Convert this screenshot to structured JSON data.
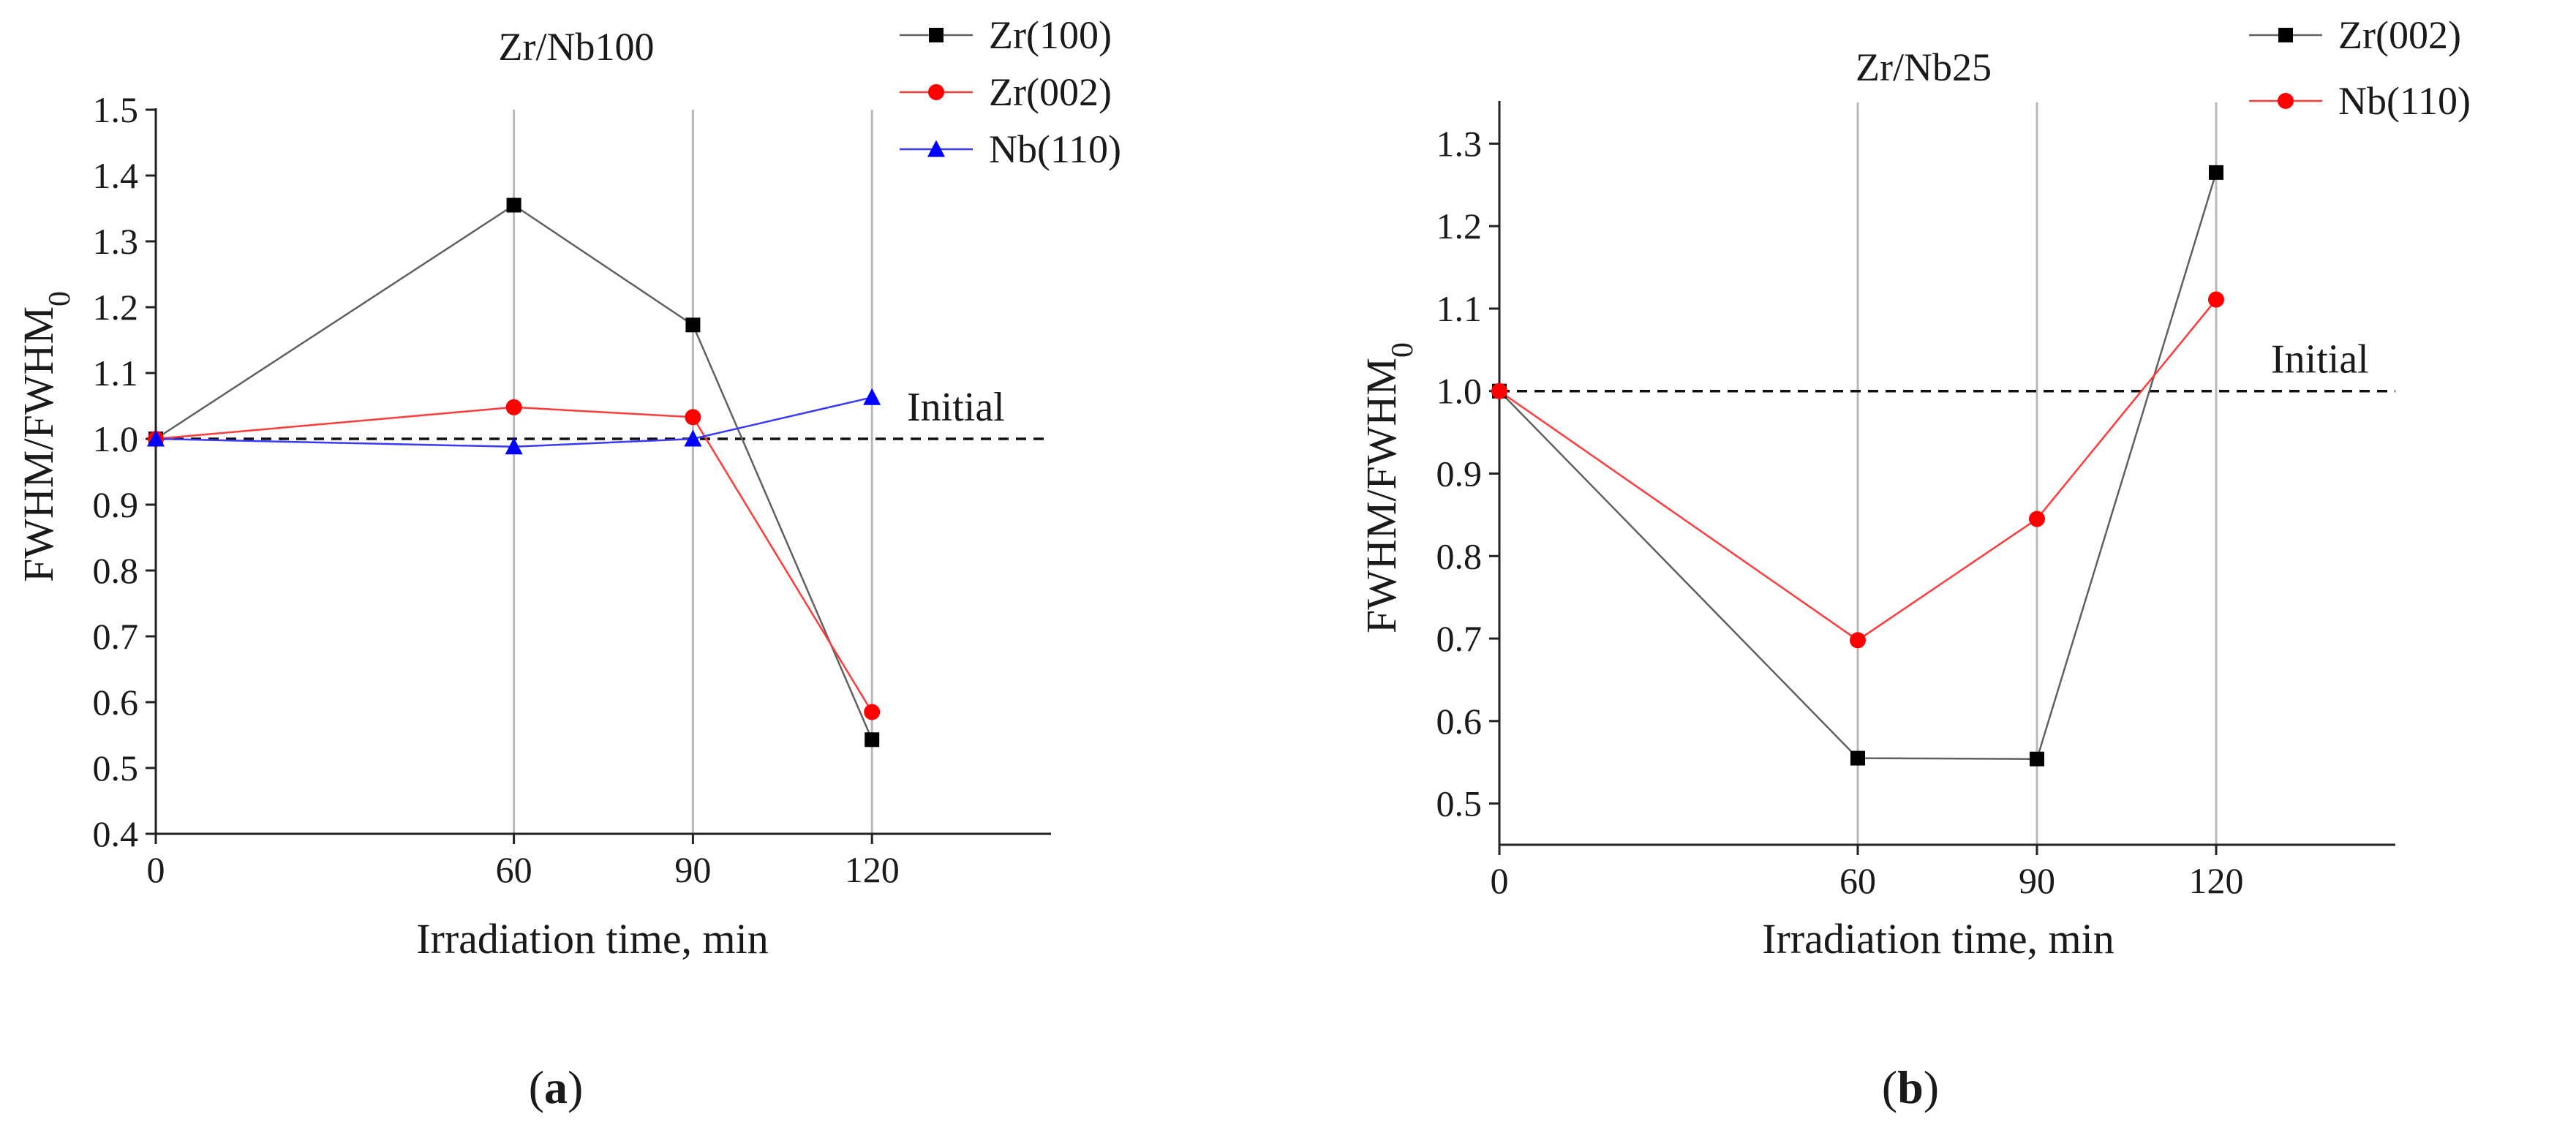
{
  "chart_data": [
    {
      "type": "line",
      "panel_label": "a",
      "title": "Zr/Nb100",
      "xlabel": "Irradiation time, min",
      "ylabel": "FWHM/FWHM",
      "ylabel_subscript": "0",
      "x": [
        0,
        60,
        90,
        120
      ],
      "xlim": [
        0,
        150
      ],
      "ylim": [
        0.4,
        1.5
      ],
      "xticks": [
        0,
        60,
        90,
        120
      ],
      "yticks": [
        0.4,
        0.5,
        0.6,
        0.7,
        0.8,
        0.9,
        1.0,
        1.1,
        1.2,
        1.3,
        1.4,
        1.5
      ],
      "ytick_labels": [
        "0.4",
        "0.5",
        "0.6",
        "0.7",
        "0.8",
        "0.9",
        "1.0",
        "1.1",
        "1.2",
        "1.3",
        "1.4",
        "1.5"
      ],
      "vgrid": [
        60,
        90,
        120
      ],
      "reference_line": {
        "y": 1.0,
        "label": "Initial",
        "style": "dashed"
      },
      "legend_position": "top-right",
      "series": [
        {
          "name": "Zr(100)",
          "color": "#000000",
          "line_color": "#606060",
          "marker": "square",
          "values": [
            1.0,
            1.355,
            1.173,
            0.543
          ]
        },
        {
          "name": "Zr(002)",
          "color": "#ff0000",
          "line_color": "#ff3b3b",
          "marker": "circle",
          "values": [
            1.0,
            1.048,
            1.033,
            0.585
          ]
        },
        {
          "name": "Nb(110)",
          "color": "#0000ff",
          "line_color": "#3a3aff",
          "marker": "triangle",
          "values": [
            1.0,
            0.988,
            1.0,
            1.063
          ]
        }
      ]
    },
    {
      "type": "line",
      "panel_label": "b",
      "title": "Zr/Nb25",
      "xlabel": "Irradiation time, min",
      "ylabel": "FWHM/FWHM",
      "ylabel_subscript": "0",
      "x": [
        0,
        60,
        90,
        120
      ],
      "xlim": [
        0,
        150
      ],
      "ylim": [
        0.45,
        1.35
      ],
      "xticks": [
        0,
        60,
        90,
        120
      ],
      "yticks": [
        0.5,
        0.6,
        0.7,
        0.8,
        0.9,
        1.0,
        1.1,
        1.2,
        1.3
      ],
      "ytick_labels": [
        "0.5",
        "0.6",
        "0.7",
        "0.8",
        "0.9",
        "1.0",
        "1.1",
        "1.2",
        "1.3"
      ],
      "vgrid": [
        60,
        90,
        120
      ],
      "reference_line": {
        "y": 1.0,
        "label": "Initial",
        "style": "dashed"
      },
      "legend_position": "top-right",
      "series": [
        {
          "name": "Zr(002)",
          "color": "#000000",
          "line_color": "#606060",
          "marker": "square",
          "values": [
            1.0,
            0.555,
            0.554,
            1.265
          ]
        },
        {
          "name": "Nb(110)",
          "color": "#ff0000",
          "line_color": "#ff3b3b",
          "marker": "circle",
          "values": [
            1.0,
            0.698,
            0.845,
            1.111
          ]
        }
      ]
    }
  ]
}
